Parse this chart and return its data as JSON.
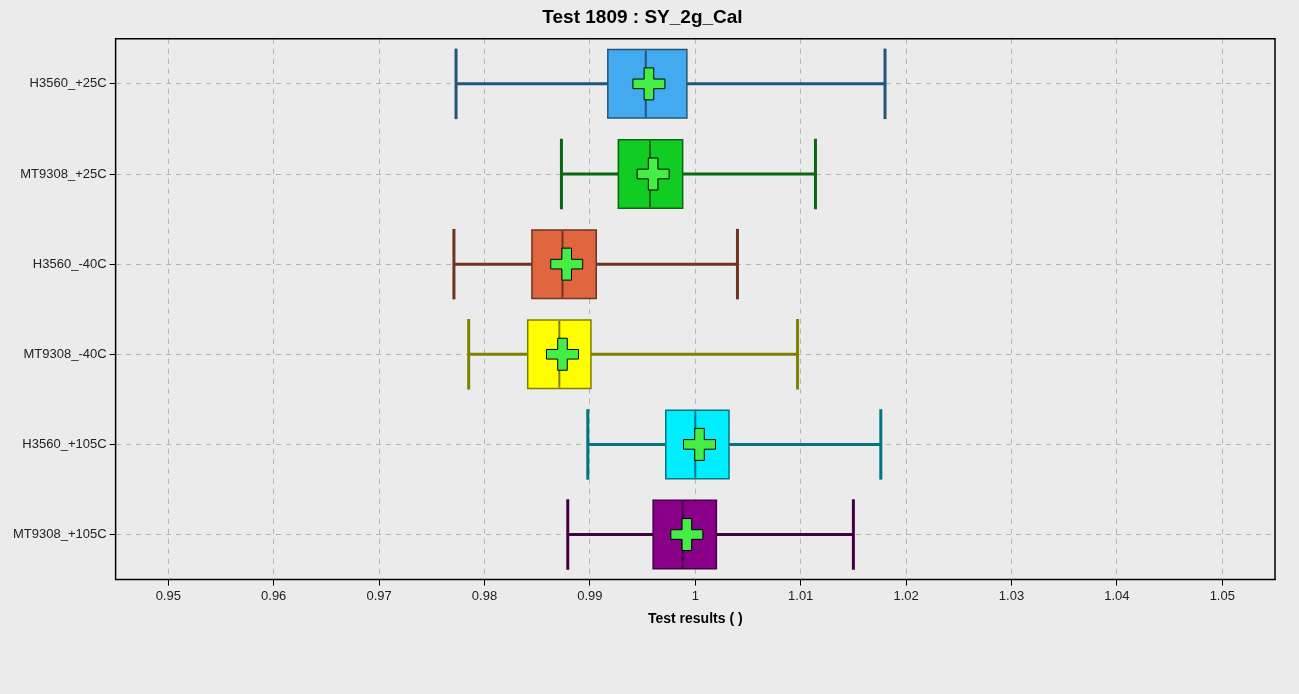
{
  "chart_data": {
    "type": "box",
    "orientation": "horizontal",
    "title": "Test 1809 : SY_2g_Cal",
    "xlabel": "Test results ( )",
    "categories": [
      "H3560_+25C",
      "MT9308_+25C",
      "H3560_-40C",
      "MT9308_-40C",
      "H3560_+105C",
      "MT9308_+105C"
    ],
    "colors": [
      "#44aaf0",
      "#11cc22",
      "#e06640",
      "#ffff00",
      "#00eeff",
      "#880088"
    ],
    "boxes": [
      {
        "low": 0.9773,
        "q1": 0.9917,
        "median": 0.9953,
        "q3": 0.9992,
        "high": 1.018,
        "mean": 0.9956
      },
      {
        "low": 0.9873,
        "q1": 0.9927,
        "median": 0.9957,
        "q3": 0.9988,
        "high": 1.0114,
        "mean": 0.996
      },
      {
        "low": 0.9771,
        "q1": 0.9845,
        "median": 0.9874,
        "q3": 0.9906,
        "high": 1.004,
        "mean": 0.9878
      },
      {
        "low": 0.9785,
        "q1": 0.9841,
        "median": 0.9871,
        "q3": 0.9901,
        "high": 1.0097,
        "mean": 0.9874
      },
      {
        "low": 0.9898,
        "q1": 0.9972,
        "median": 1.0,
        "q3": 1.0032,
        "high": 1.0176,
        "mean": 1.0004
      },
      {
        "low": 0.9879,
        "q1": 0.996,
        "median": 0.9988,
        "q3": 1.002,
        "high": 1.015,
        "mean": 0.9992
      }
    ],
    "xlim": [
      0.945,
      1.055
    ],
    "xticks": [
      0.95,
      0.96,
      0.97,
      0.98,
      0.99,
      1,
      1.01,
      1.02,
      1.03,
      1.04,
      1.05
    ],
    "grid": true,
    "marker": "cross",
    "legend": false
  }
}
